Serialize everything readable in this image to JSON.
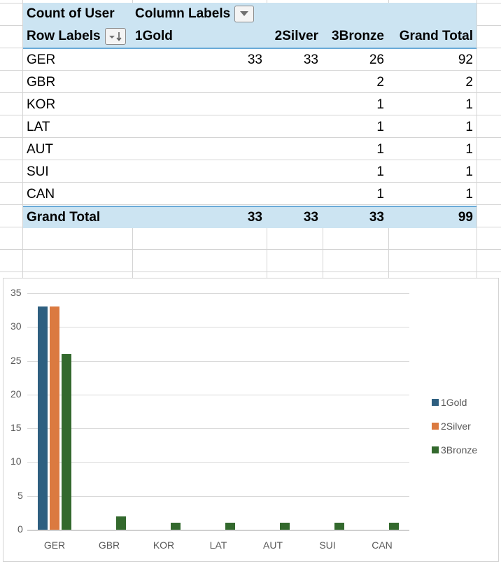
{
  "pivot": {
    "value_field": "Count of User",
    "column_labels": "Column Labels",
    "row_labels": "Row Labels",
    "column_filter_icon": "dropdown-arrow",
    "row_sort_icon": "filter-sort-descending",
    "headers": [
      "1Gold",
      "2Silver",
      "3Bronze",
      "Grand Total"
    ],
    "rows": [
      {
        "label": "GER",
        "gold": "33",
        "silver": "33",
        "bronze": "26",
        "total": "92"
      },
      {
        "label": "GBR",
        "gold": "",
        "silver": "",
        "bronze": "2",
        "total": "2"
      },
      {
        "label": "KOR",
        "gold": "",
        "silver": "",
        "bronze": "1",
        "total": "1"
      },
      {
        "label": "LAT",
        "gold": "",
        "silver": "",
        "bronze": "1",
        "total": "1"
      },
      {
        "label": "AUT",
        "gold": "",
        "silver": "",
        "bronze": "1",
        "total": "1"
      },
      {
        "label": "SUI",
        "gold": "",
        "silver": "",
        "bronze": "1",
        "total": "1"
      },
      {
        "label": "CAN",
        "gold": "",
        "silver": "",
        "bronze": "1",
        "total": "1"
      }
    ],
    "grand_total": {
      "label": "Grand Total",
      "gold": "33",
      "silver": "33",
      "bronze": "33",
      "total": "99"
    }
  },
  "colors": {
    "header_bg": "#cce4f2",
    "header_border": "#6aaad8",
    "gold": "#2e5f80",
    "silver": "#db7a40",
    "bronze": "#33692d"
  },
  "chart_data": {
    "type": "bar",
    "title": "",
    "xlabel": "",
    "ylabel": "",
    "categories": [
      "GER",
      "GBR",
      "KOR",
      "LAT",
      "AUT",
      "SUI",
      "CAN"
    ],
    "series": [
      {
        "name": "1Gold",
        "color": "#2e5f80",
        "values": [
          33,
          0,
          0,
          0,
          0,
          0,
          0
        ]
      },
      {
        "name": "2Silver",
        "color": "#db7a40",
        "values": [
          33,
          0,
          0,
          0,
          0,
          0,
          0
        ]
      },
      {
        "name": "3Bronze",
        "color": "#33692d",
        "values": [
          26,
          2,
          1,
          1,
          1,
          1,
          1
        ]
      }
    ],
    "ylim": [
      0,
      35
    ],
    "yticks": [
      "0",
      "5",
      "10",
      "15",
      "20",
      "25",
      "30",
      "35"
    ],
    "grid": true,
    "legend_position": "right"
  }
}
